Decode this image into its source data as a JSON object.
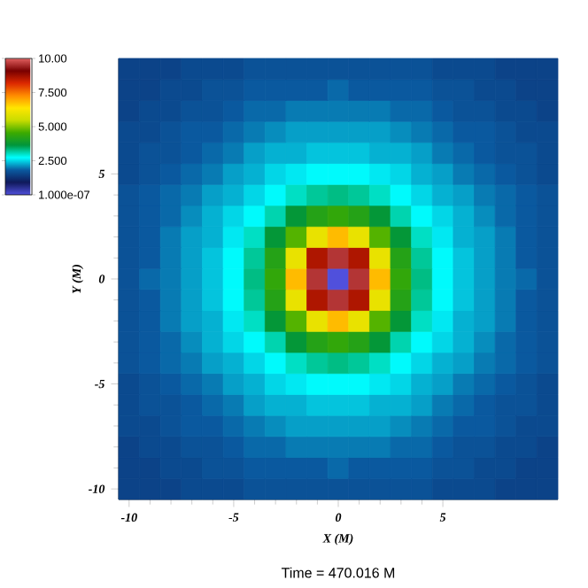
{
  "chart_data": {
    "type": "heatmap",
    "xlabel": "X (M)",
    "ylabel": "Y (M)",
    "categories": [
      "-10",
      null,
      null,
      null,
      null,
      "-5",
      null,
      null,
      null,
      null,
      "0",
      null,
      null,
      null,
      null,
      "5",
      null,
      null,
      null,
      null,
      null
    ],
    "y_categories": [
      null,
      null,
      null,
      null,
      null,
      "5",
      null,
      null,
      null,
      null,
      "0",
      null,
      null,
      null,
      null,
      "-5",
      null,
      null,
      null,
      null,
      "-10"
    ],
    "clim": [
      1e-07,
      10
    ],
    "cticks": [
      {
        "value": 1e-07,
        "label": "1.000e-07"
      },
      {
        "value": 2.5,
        "label": "2.500"
      },
      {
        "value": 5,
        "label": "5.000"
      },
      {
        "value": 7.5,
        "label": "7.500"
      },
      {
        "value": 10,
        "label": "10.00"
      }
    ],
    "annotations": [
      "Time = 470.016 M"
    ],
    "cells": [
      [
        1.5,
        1.5,
        1.5,
        1.6,
        1.6,
        1.6,
        1.7,
        1.7,
        1.7,
        1.7,
        1.7,
        1.7,
        1.7,
        1.7,
        1.7,
        1.6,
        1.6,
        1.6,
        1.5,
        1.5,
        1.5
      ],
      [
        1.5,
        1.5,
        1.6,
        1.6,
        1.7,
        1.7,
        1.8,
        1.8,
        1.8,
        1.8,
        1.9,
        1.8,
        1.8,
        1.8,
        1.8,
        1.7,
        1.7,
        1.6,
        1.6,
        1.5,
        1.5
      ],
      [
        1.5,
        1.6,
        1.6,
        1.7,
        1.7,
        1.8,
        1.9,
        1.9,
        2.0,
        2.0,
        2.0,
        2.0,
        2.0,
        1.9,
        1.9,
        1.8,
        1.7,
        1.7,
        1.6,
        1.6,
        1.5
      ],
      [
        1.6,
        1.6,
        1.7,
        1.8,
        1.8,
        1.9,
        2.0,
        2.1,
        2.2,
        2.2,
        2.2,
        2.2,
        2.2,
        2.1,
        2.0,
        1.9,
        1.8,
        1.8,
        1.7,
        1.6,
        1.6
      ],
      [
        1.6,
        1.7,
        1.7,
        1.8,
        1.9,
        2.0,
        2.2,
        2.3,
        2.3,
        2.4,
        2.4,
        2.4,
        2.3,
        2.3,
        2.2,
        2.0,
        1.9,
        1.8,
        1.7,
        1.7,
        1.6
      ],
      [
        1.6,
        1.7,
        1.8,
        1.9,
        2.0,
        2.2,
        2.3,
        2.5,
        2.6,
        2.7,
        2.7,
        2.7,
        2.6,
        2.5,
        2.3,
        2.2,
        2.0,
        1.9,
        1.8,
        1.7,
        1.6
      ],
      [
        1.7,
        1.8,
        1.9,
        2.0,
        2.2,
        2.3,
        2.5,
        2.7,
        3.0,
        3.2,
        3.3,
        3.2,
        3.0,
        2.7,
        2.5,
        2.3,
        2.2,
        2.0,
        1.9,
        1.8,
        1.7
      ],
      [
        1.7,
        1.8,
        1.9,
        2.1,
        2.3,
        2.5,
        2.7,
        3.1,
        3.7,
        4.2,
        4.4,
        4.2,
        3.7,
        3.1,
        2.7,
        2.5,
        2.3,
        2.1,
        1.9,
        1.8,
        1.7
      ],
      [
        1.7,
        1.8,
        2.0,
        2.2,
        2.3,
        2.6,
        3.0,
        3.7,
        4.7,
        6.0,
        6.8,
        6.0,
        4.7,
        3.7,
        3.0,
        2.6,
        2.3,
        2.2,
        2.0,
        1.8,
        1.7
      ],
      [
        1.7,
        1.8,
        2.0,
        2.2,
        2.4,
        2.7,
        3.2,
        4.2,
        6.0,
        8.6,
        9.6,
        8.6,
        6.0,
        4.2,
        3.2,
        2.7,
        2.4,
        2.2,
        2.0,
        1.8,
        1.7
      ],
      [
        1.7,
        1.9,
        2.0,
        2.2,
        2.4,
        2.7,
        3.3,
        4.4,
        6.8,
        9.6,
        0,
        9.6,
        6.8,
        4.4,
        3.3,
        2.7,
        2.4,
        2.2,
        2.0,
        1.9,
        1.7
      ],
      [
        1.7,
        1.8,
        2.0,
        2.2,
        2.4,
        2.7,
        3.2,
        4.2,
        6.0,
        8.6,
        9.6,
        8.6,
        6.0,
        4.2,
        3.2,
        2.7,
        2.4,
        2.2,
        2.0,
        1.8,
        1.7
      ],
      [
        1.7,
        1.8,
        2.0,
        2.2,
        2.3,
        2.6,
        3.0,
        3.7,
        4.7,
        6.0,
        6.8,
        6.0,
        4.7,
        3.7,
        3.0,
        2.6,
        2.3,
        2.2,
        2.0,
        1.8,
        1.7
      ],
      [
        1.7,
        1.8,
        1.9,
        2.1,
        2.3,
        2.5,
        2.7,
        3.1,
        3.7,
        4.2,
        4.4,
        4.2,
        3.7,
        3.1,
        2.7,
        2.5,
        2.3,
        2.1,
        1.9,
        1.8,
        1.7
      ],
      [
        1.7,
        1.8,
        1.9,
        2.0,
        2.2,
        2.3,
        2.5,
        2.7,
        3.0,
        3.2,
        3.3,
        3.2,
        3.0,
        2.7,
        2.5,
        2.3,
        2.2,
        2.0,
        1.9,
        1.8,
        1.7
      ],
      [
        1.6,
        1.7,
        1.8,
        1.9,
        2.0,
        2.2,
        2.3,
        2.5,
        2.6,
        2.7,
        2.7,
        2.7,
        2.6,
        2.5,
        2.3,
        2.2,
        2.0,
        1.9,
        1.8,
        1.7,
        1.6
      ],
      [
        1.6,
        1.7,
        1.7,
        1.8,
        1.9,
        2.0,
        2.2,
        2.3,
        2.3,
        2.4,
        2.4,
        2.4,
        2.3,
        2.3,
        2.2,
        2.0,
        1.9,
        1.8,
        1.7,
        1.7,
        1.6
      ],
      [
        1.6,
        1.6,
        1.7,
        1.8,
        1.8,
        1.9,
        2.0,
        2.1,
        2.2,
        2.2,
        2.2,
        2.2,
        2.2,
        2.1,
        2.0,
        1.9,
        1.8,
        1.8,
        1.7,
        1.6,
        1.6
      ],
      [
        1.5,
        1.6,
        1.6,
        1.7,
        1.7,
        1.8,
        1.9,
        1.9,
        2.0,
        2.0,
        2.0,
        2.0,
        2.0,
        1.9,
        1.9,
        1.8,
        1.7,
        1.7,
        1.6,
        1.6,
        1.5
      ],
      [
        1.5,
        1.5,
        1.6,
        1.6,
        1.7,
        1.7,
        1.8,
        1.8,
        1.8,
        1.8,
        1.9,
        1.8,
        1.8,
        1.8,
        1.8,
        1.7,
        1.7,
        1.6,
        1.6,
        1.5,
        1.5
      ],
      [
        1.5,
        1.5,
        1.5,
        1.6,
        1.6,
        1.6,
        1.7,
        1.7,
        1.7,
        1.7,
        1.7,
        1.7,
        1.7,
        1.7,
        1.7,
        1.6,
        1.6,
        1.6,
        1.5,
        1.5,
        1.5
      ]
    ]
  }
}
